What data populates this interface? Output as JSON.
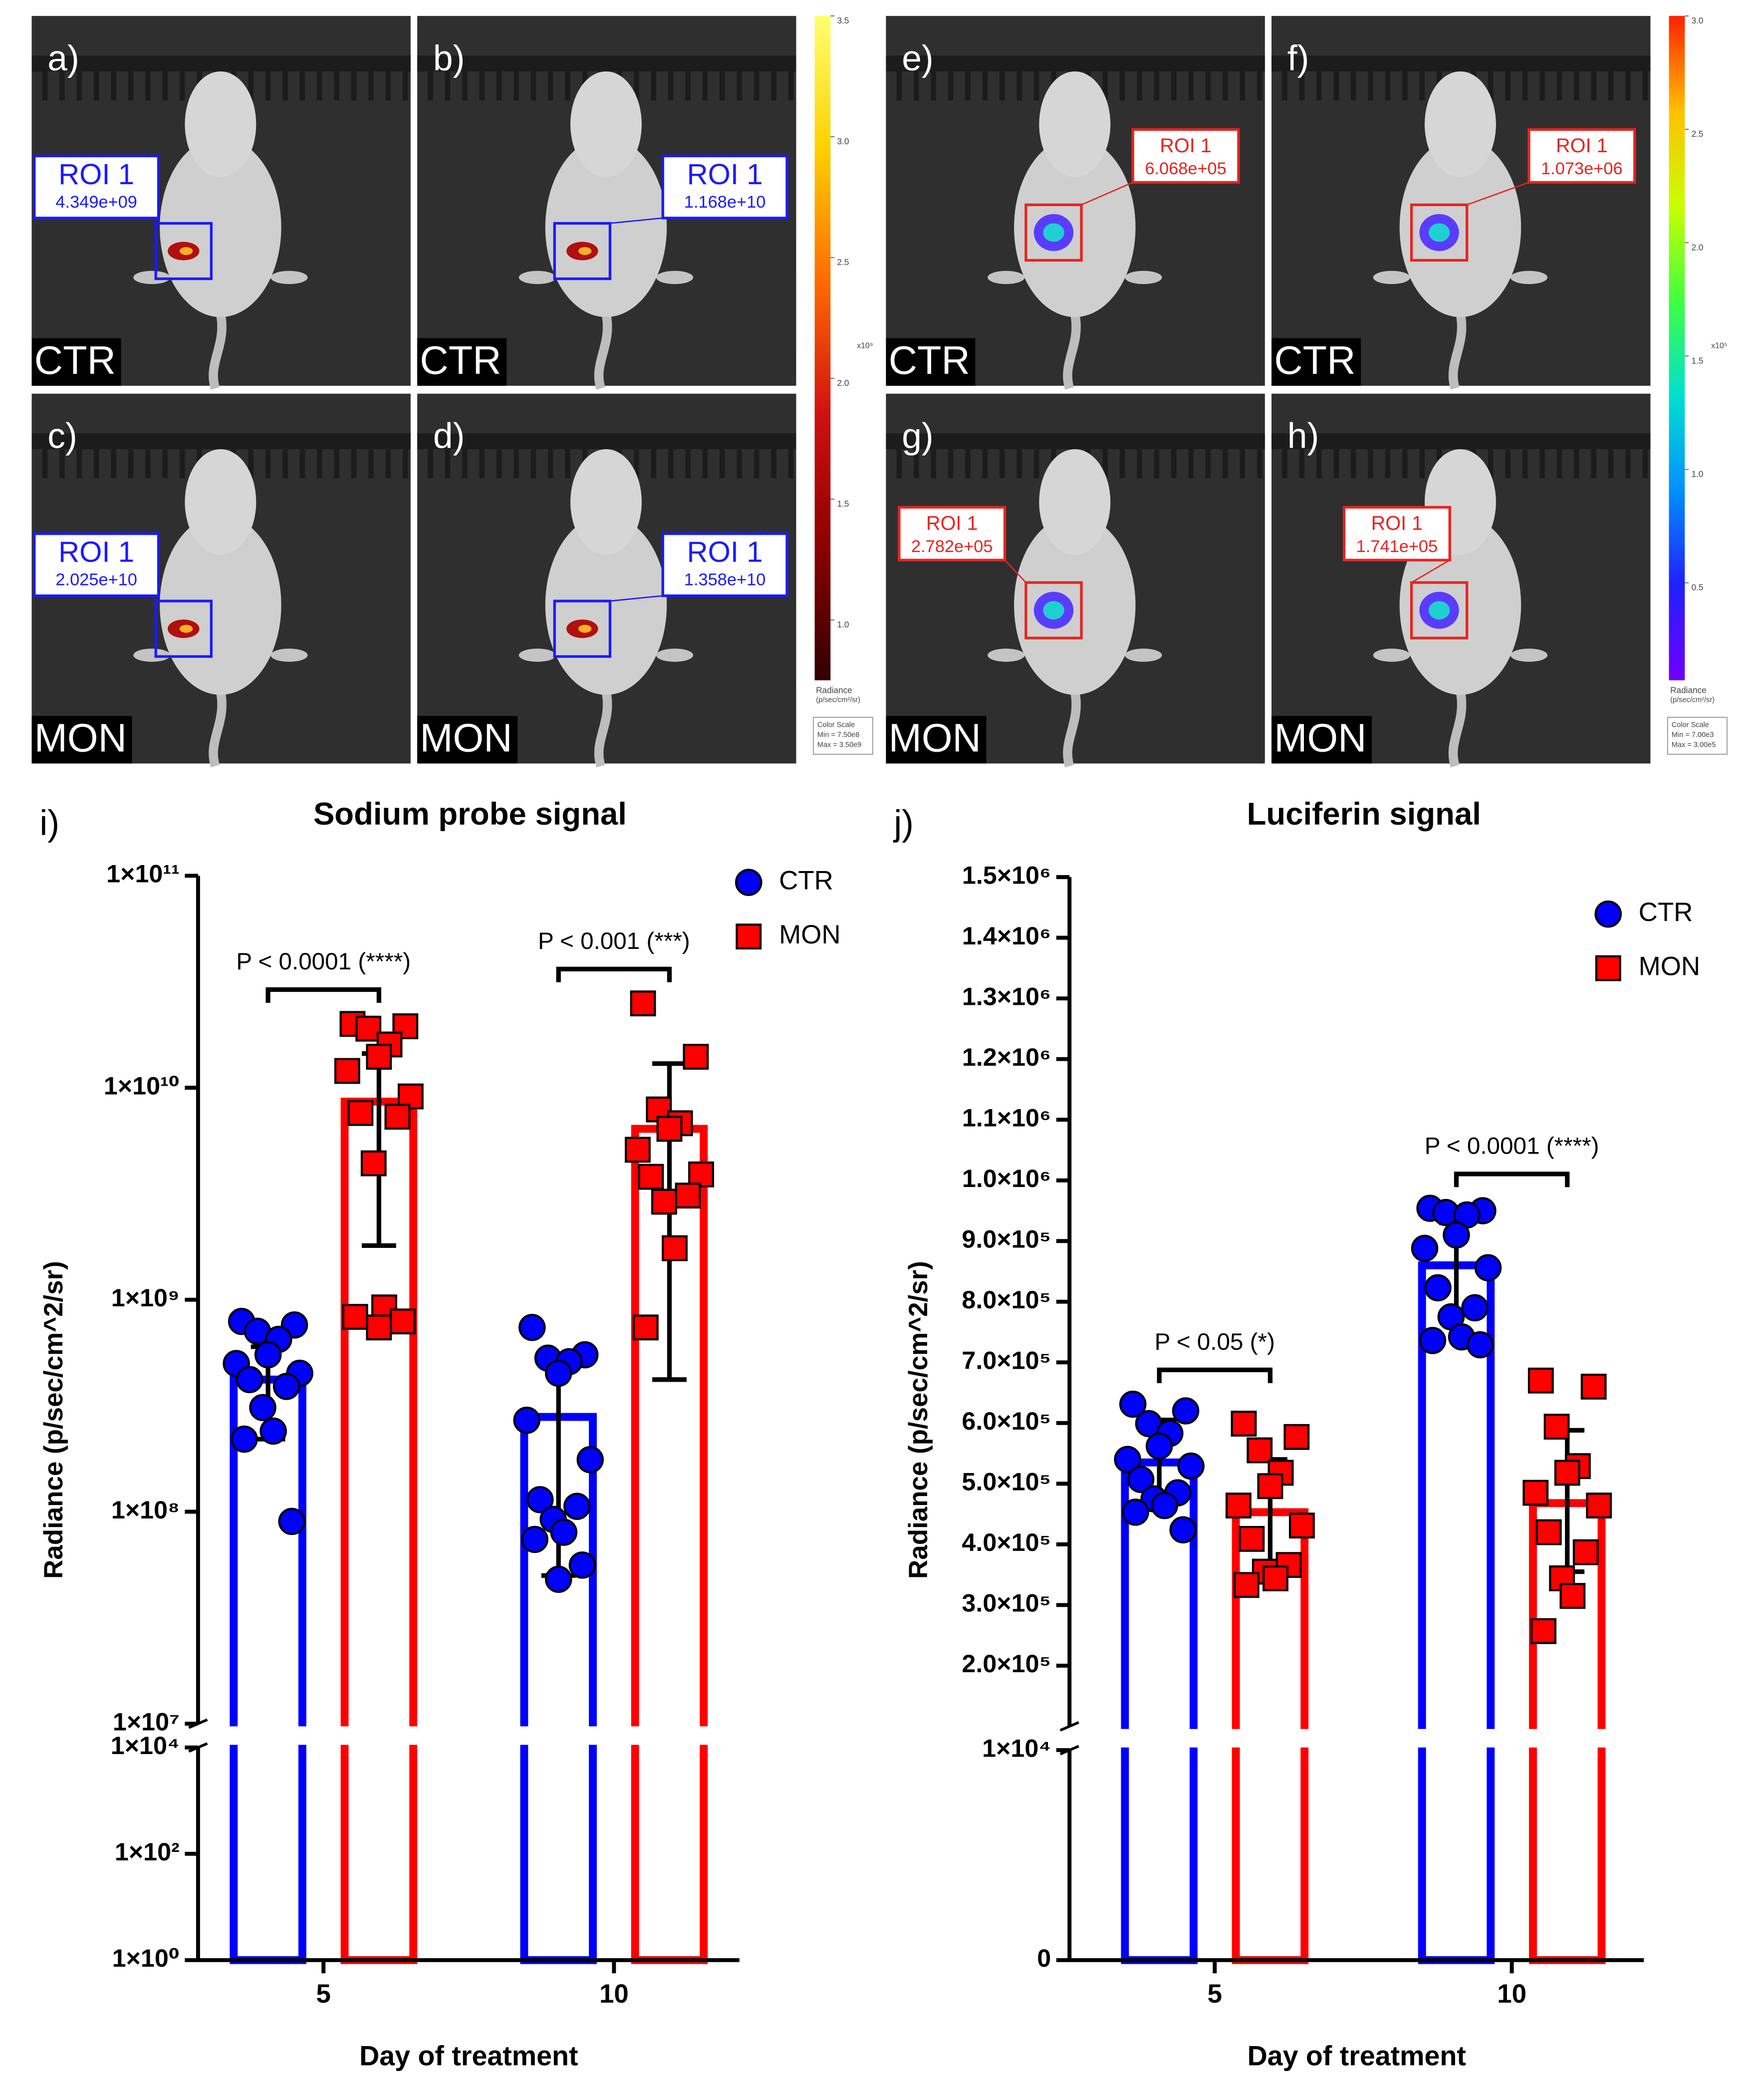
{
  "images": [
    {
      "label": "a)",
      "group": "CTR",
      "roi": "ROI 1",
      "roi_value": "4.349e+09",
      "roi_color": "#1a1aff"
    },
    {
      "label": "b)",
      "group": "CTR",
      "roi": "ROI 1",
      "roi_value": "1.168e+10",
      "roi_color": "#1a1aff"
    },
    {
      "label": "c)",
      "group": "MON",
      "roi": "ROI 1",
      "roi_value": "2.025e+10",
      "roi_color": "#1a1aff"
    },
    {
      "label": "d)",
      "group": "MON",
      "roi": "ROI 1",
      "roi_value": "1.358e+10",
      "roi_color": "#1a1aff"
    },
    {
      "label": "e)",
      "group": "CTR",
      "roi": "ROI 1",
      "roi_value": "6.068e+05",
      "roi_color": "#e8231f"
    },
    {
      "label": "f)",
      "group": "CTR",
      "roi": "ROI 1",
      "roi_value": "1.073e+06",
      "roi_color": "#e8231f"
    },
    {
      "label": "g)",
      "group": "MON",
      "roi": "ROI 1",
      "roi_value": "2.782e+05",
      "roi_color": "#e8231f"
    },
    {
      "label": "h)",
      "group": "MON",
      "roi": "ROI 1",
      "roi_value": "1.741e+05",
      "roi_color": "#e8231f"
    }
  ],
  "colorbars": [
    {
      "range": [
        0.75,
        3.5
      ],
      "ticks": [
        3.5,
        {
          "value": 3,
          "label": "3.0"
        },
        2.5,
        {
          "value": 2,
          "label": "2.0"
        },
        1.5,
        {
          "value": 1,
          "label": "1.0"
        }
      ],
      "exponent": "x10⁹",
      "title": "Radiance",
      "unit": "(p/sec/cm²/sr)",
      "scale_box": [
        "Color Scale",
        "Min = 7.50e8",
        "Max = 3.50e9"
      ],
      "colors": [
        "#300000",
        "#8b0000",
        "#d01010",
        "#ff6a00",
        "#ffd000",
        "#ffff70"
      ]
    },
    {
      "range": [
        0.07,
        3.0
      ],
      "ticks": [
        {
          "value": 3,
          "label": "3.0"
        },
        2.5,
        {
          "value": 2,
          "label": "2.0"
        },
        1.5,
        {
          "value": 1,
          "label": "1.0"
        },
        0.5
      ],
      "exponent": "x10⁵",
      "title": "Radiance",
      "unit": "(p/sec/cm²/sr)",
      "scale_box": [
        "Color Scale",
        "Min = 7.00e3",
        "Max = 3.00e5"
      ],
      "colors": [
        "#7000ff",
        "#2020ff",
        "#0090ff",
        "#00e0d0",
        "#40ff40",
        "#c8ff00",
        "#ffc000",
        "#ff2000"
      ]
    }
  ],
  "chart_data": [
    {
      "type": "bar",
      "panel_label": "i)",
      "title": "Sodium probe signal",
      "xlabel": "Day of treatment",
      "ylabel": "Radiance (p/sec/cm^2/sr)",
      "categories": [
        "5",
        "10"
      ],
      "log_scale": true,
      "ylim": [
        1,
        100000000000.0
      ],
      "y_break": [
        10000,
        10000000
      ],
      "yticks": [
        {
          "value": 1,
          "label": "1×10⁰"
        },
        {
          "value": 100,
          "label": "1×10²"
        },
        {
          "value": 10000,
          "label": "1×10⁴"
        },
        {
          "value": 10000000,
          "label": "1×10⁷"
        },
        {
          "value": 100000000,
          "label": "1×10⁸"
        },
        {
          "value": 1000000000,
          "label": "1×10⁹"
        },
        {
          "value": 10000000000,
          "label": "1×10¹⁰"
        },
        {
          "value": 100000000000,
          "label": "1×10¹¹"
        }
      ],
      "legend": "upper right",
      "significance": [
        "P < 0.0001  (****)",
        "P < 0.001  (***)"
      ],
      "series": [
        {
          "name": "CTR",
          "color": "#0000ff",
          "marker": "circle",
          "values": [
            420000000,
            280000000
          ],
          "errors": [
            [
              220000000,
              600000000
            ],
            [
              50000000,
              510000000
            ]
          ],
          "points": [
            [
              790000000,
              760000000,
              710000000,
              650000000,
              550000000,
              500000000,
              450000000,
              420000000,
              390000000,
              310000000,
              240000000,
              220000000,
              90000000
            ],
            [
              740000000,
              550000000,
              530000000,
              510000000,
              450000000,
              270000000,
              176000000,
              114000000,
              106000000,
              92000000,
              80000000,
              74000000,
              56000000,
              48000000
            ]
          ]
        },
        {
          "name": "MON",
          "color": "#ff0000",
          "marker": "square",
          "values": [
            8600000000,
            6400000000
          ],
          "errors": [
            [
              1800000000,
              14500000000
            ],
            [
              420000000,
              13000000000
            ]
          ],
          "points": [
            [
              20000000000,
              19500000000,
              19000000000,
              16000000000,
              14000000000,
              12000000000,
              9100000000,
              7600000000,
              7300000000,
              4400000000,
              920000000,
              830000000,
              790000000,
              740000000
            ],
            [
              25000000000,
              14000000000,
              7900000000,
              6800000000,
              6400000000,
              5100000000,
              3900000000,
              3800000000,
              3100000000,
              2900000000,
              1750000000,
              740000000
            ]
          ]
        }
      ]
    },
    {
      "type": "bar",
      "panel_label": "j)",
      "title": "Luciferin signal",
      "xlabel": "Day of treatment",
      "ylabel": "Radiance (p/sec/cm^2/sr)",
      "categories": [
        "5",
        "10"
      ],
      "log_scale": false,
      "ylim": [
        0,
        1500000
      ],
      "y_break": [
        10000,
        100000
      ],
      "yticks": [
        0,
        {
          "value": 10000,
          "label": "1×10⁴"
        },
        {
          "value": 200000,
          "label": "2.0×10⁵"
        },
        {
          "value": 300000,
          "label": "3.0×10⁵"
        },
        {
          "value": 400000,
          "label": "4.0×10⁵"
        },
        {
          "value": 500000,
          "label": "5.0×10⁵"
        },
        {
          "value": 600000,
          "label": "6.0×10⁵"
        },
        {
          "value": 700000,
          "label": "7.0×10⁵"
        },
        {
          "value": 800000,
          "label": "8.0×10⁵"
        },
        {
          "value": 900000,
          "label": "9.0×10⁵"
        },
        {
          "value": 1000000,
          "label": "1.0×10⁶"
        },
        {
          "value": 1100000,
          "label": "1.1×10⁶"
        },
        {
          "value": 1200000,
          "label": "1.2×10⁶"
        },
        {
          "value": 1300000,
          "label": "1.3×10⁶"
        },
        {
          "value": 1400000,
          "label": "1.4×10⁶"
        },
        {
          "value": 1500000,
          "label": "1.5×10⁶"
        }
      ],
      "legend": "upper right",
      "significance": [
        "P < 0.05  (*)",
        "P < 0.0001  (****)"
      ],
      "series": [
        {
          "name": "CTR",
          "color": "#0000ff",
          "marker": "circle",
          "values": [
            535000,
            860000
          ],
          "errors": [
            [
              470000,
              605000
            ],
            [
              780000,
              930000
            ]
          ],
          "points": [
            [
              631000,
              620000,
              599000,
              583000,
              562000,
              540000,
              529000,
              507000,
              485000,
              475000,
              464000,
              453000,
              424000
            ],
            [
              954000,
              950000,
              947000,
              943000,
              910000,
              888000,
              856000,
              823000,
              790000,
              775000,
              742000,
              736000,
              729000
            ]
          ]
        },
        {
          "name": "MON",
          "color": "#ff0000",
          "marker": "square",
          "values": [
            453000,
            468000
          ],
          "errors": [
            [
              366000,
              540000
            ],
            [
              355000,
              588000
            ]
          ],
          "points": [
            [
              599000,
              577000,
              555000,
              518000,
              496000,
              464000,
              431000,
              409000,
              366000,
              355000,
              344000,
              333000
            ],
            [
              670000,
              660000,
              594000,
              529000,
              518000,
              485000,
              464000,
              420000,
              387000,
              344000,
              315000,
              257000
            ]
          ]
        }
      ]
    }
  ]
}
